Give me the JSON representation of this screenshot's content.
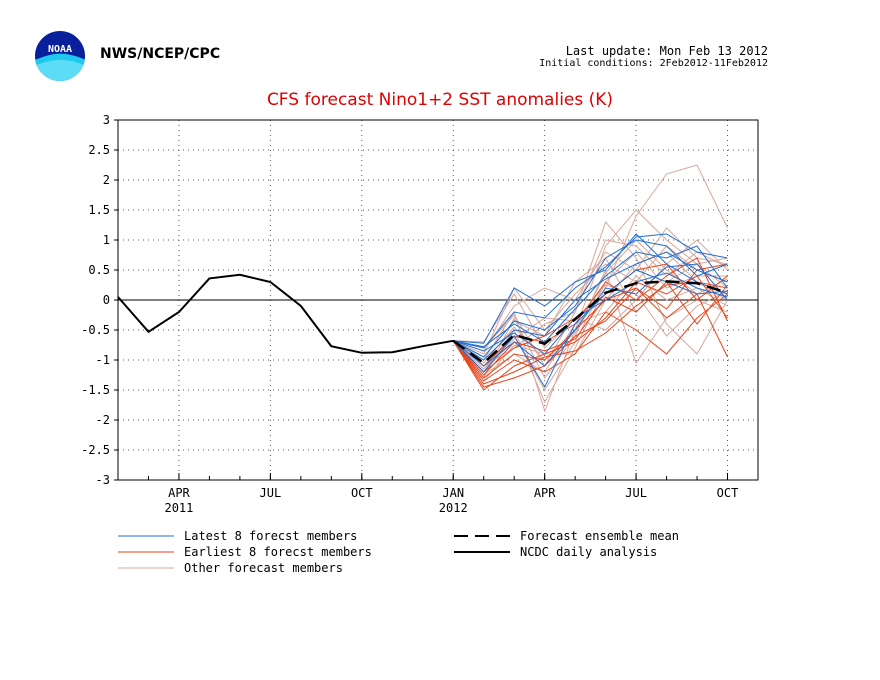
{
  "header": {
    "agency": "NWS/NCEP/CPC",
    "last_update": "Last update: Mon Feb 13 2012",
    "initial_conditions": "Initial conditions: 2Feb2012-11Feb2012"
  },
  "logo": {
    "icon": "noaa-logo-icon",
    "text": "NOAA"
  },
  "chart_data": {
    "type": "line",
    "title": "CFS forecast Nino1+2 SST anomalies (K)",
    "ylim": [
      -3,
      3
    ],
    "y_ticks": [
      3,
      2.5,
      2,
      1.5,
      1,
      0.5,
      0,
      -0.5,
      -1,
      -1.5,
      -2,
      -2.5,
      -3
    ],
    "x_tick_labels": [
      {
        "month_index": 3,
        "label": "APR",
        "year": "2011"
      },
      {
        "month_index": 6,
        "label": "JUL",
        "year": ""
      },
      {
        "month_index": 9,
        "label": "OCT",
        "year": ""
      },
      {
        "month_index": 12,
        "label": "JAN",
        "year": "2012"
      },
      {
        "month_index": 15,
        "label": "APR",
        "year": ""
      },
      {
        "month_index": 18,
        "label": "JUL",
        "year": ""
      },
      {
        "month_index": 21,
        "label": "OCT",
        "year": ""
      }
    ],
    "xlim_month_index": [
      1,
      22
    ],
    "grid": true,
    "zero_line": true,
    "colors": {
      "latest": "#1f6fd6",
      "earliest": "#e8451a",
      "other": "#d9a79a",
      "analysis": "#000000",
      "mean": "#000000"
    },
    "legend": {
      "placement": "bottom",
      "entries": [
        {
          "key": "latest",
          "label": "Latest 8 forecst members"
        },
        {
          "key": "earliest",
          "label": "Earliest 8 forecst members"
        },
        {
          "key": "other",
          "label": "Other forecast members"
        },
        {
          "key": "mean",
          "label": "Forecast ensemble mean"
        },
        {
          "key": "analysis",
          "label": "NCDC daily analysis"
        }
      ]
    },
    "ncdc_daily_analysis": {
      "month_index": [
        1,
        2,
        3,
        4,
        5,
        6,
        7,
        8,
        9,
        10,
        11,
        12
      ],
      "values": [
        0.05,
        -0.53,
        -0.2,
        0.36,
        0.42,
        0.3,
        -0.1,
        -0.77,
        -0.88,
        -0.87,
        -0.77,
        -0.68
      ]
    },
    "forecast_ensemble_mean": {
      "month_index": [
        12,
        13,
        14,
        15,
        16,
        17,
        18,
        19,
        20,
        21
      ],
      "values": [
        -0.68,
        -1.05,
        -0.58,
        -0.73,
        -0.32,
        0.12,
        0.28,
        0.31,
        0.28,
        0.12
      ]
    },
    "forecast_month_index": [
      12,
      13,
      14,
      15,
      16,
      17,
      18,
      19,
      20,
      21
    ],
    "latest_members": [
      [
        -0.68,
        -0.8,
        -0.2,
        -0.3,
        0.2,
        0.55,
        1.05,
        1.1,
        0.8,
        0.7
      ],
      [
        -0.68,
        -0.72,
        0.2,
        -0.1,
        0.3,
        0.5,
        1.1,
        0.6,
        0.3,
        0.1
      ],
      [
        -0.68,
        -1.0,
        -0.5,
        -0.6,
        0.0,
        0.35,
        0.6,
        0.8,
        0.5,
        0.3
      ],
      [
        -0.68,
        -1.2,
        -0.6,
        -1.45,
        -0.4,
        0.1,
        0.5,
        0.3,
        0.1,
        0.15
      ],
      [
        -0.68,
        -0.95,
        -0.35,
        -0.5,
        -0.1,
        0.7,
        1.0,
        0.9,
        0.4,
        0.6
      ],
      [
        -0.68,
        -0.85,
        -0.55,
        -0.9,
        -0.3,
        0.0,
        0.3,
        0.45,
        0.2,
        0.05
      ],
      [
        -0.68,
        -1.1,
        -0.7,
        -1.1,
        -0.5,
        0.2,
        0.1,
        0.55,
        0.6,
        0.0
      ],
      [
        -0.68,
        -0.78,
        -0.4,
        -0.7,
        -0.15,
        0.4,
        0.8,
        0.7,
        0.9,
        0.2
      ]
    ],
    "earliest_members": [
      [
        -0.68,
        -1.5,
        -1.1,
        -0.9,
        -0.7,
        -0.3,
        0.3,
        0.1,
        0.4,
        -0.3
      ],
      [
        -0.68,
        -1.3,
        -0.9,
        -1.0,
        -0.5,
        0.0,
        0.2,
        -0.3,
        0.1,
        -0.95
      ],
      [
        -0.68,
        -1.4,
        -1.2,
        -0.95,
        -0.85,
        -0.55,
        -0.1,
        0.25,
        0.3,
        0.2
      ],
      [
        -0.68,
        -1.2,
        -0.8,
        -0.6,
        -0.3,
        0.1,
        0.5,
        0.6,
        0.0,
        0.4
      ],
      [
        -0.68,
        -1.35,
        -1.0,
        -1.2,
        -0.9,
        -0.2,
        -0.5,
        -0.9,
        -0.3,
        0.1
      ],
      [
        -0.68,
        -1.1,
        -0.6,
        -0.7,
        -0.4,
        0.3,
        0.0,
        0.4,
        0.7,
        -0.35
      ],
      [
        -0.68,
        -1.45,
        -1.3,
        -1.1,
        -0.6,
        -0.35,
        0.2,
        -0.15,
        0.5,
        0.6
      ],
      [
        -0.68,
        -1.25,
        -0.7,
        -0.85,
        -0.65,
        0.05,
        -0.2,
        0.3,
        -0.4,
        0.25
      ]
    ],
    "other_members": [
      [
        -0.68,
        -1.2,
        -0.5,
        -1.7,
        -0.8,
        0.2,
        1.4,
        2.1,
        2.25,
        1.2
      ],
      [
        -0.68,
        -1.0,
        -0.2,
        -1.85,
        -0.5,
        0.9,
        1.5,
        1.0,
        0.6,
        0.7
      ],
      [
        -0.68,
        -1.3,
        -0.3,
        -1.3,
        -0.6,
        0.5,
        -1.05,
        -0.3,
        0.0,
        -0.2
      ],
      [
        -0.68,
        -0.9,
        0.2,
        -0.5,
        0.1,
        0.6,
        0.3,
        0.9,
        0.5,
        0.3
      ],
      [
        -0.68,
        -1.1,
        -0.8,
        -0.4,
        -0.2,
        1.3,
        0.7,
        -0.4,
        -0.9,
        0.0
      ],
      [
        -0.68,
        -0.7,
        0.1,
        -0.8,
        -0.3,
        -0.5,
        0.0,
        0.6,
        1.0,
        0.5
      ],
      [
        -0.68,
        -1.15,
        -0.6,
        -1.5,
        -0.7,
        0.3,
        0.8,
        0.2,
        0.4,
        0.4
      ],
      [
        -0.68,
        -0.85,
        -0.1,
        0.2,
        0.0,
        0.8,
        0.5,
        1.2,
        0.7,
        0.6
      ],
      [
        -0.68,
        -1.25,
        -0.9,
        -1.2,
        -0.4,
        -0.2,
        0.4,
        0.0,
        0.2,
        -0.1
      ],
      [
        -0.68,
        -1.05,
        -0.45,
        -1.0,
        -0.55,
        0.45,
        1.0,
        0.5,
        0.1,
        0.35
      ],
      [
        -0.68,
        -0.95,
        -0.35,
        -0.6,
        0.3,
        0.7,
        -0.2,
        0.3,
        0.6,
        0.2
      ],
      [
        -0.68,
        -1.35,
        -0.75,
        -0.9,
        -0.9,
        0.0,
        0.6,
        0.8,
        0.3,
        0.0
      ],
      [
        -0.68,
        -0.8,
        -0.25,
        -1.1,
        -0.2,
        1.0,
        0.9,
        0.4,
        0.8,
        0.55
      ],
      [
        -0.68,
        -1.2,
        -0.65,
        -0.3,
        -0.35,
        0.25,
        0.1,
        -0.6,
        -0.1,
        0.15
      ]
    ]
  }
}
